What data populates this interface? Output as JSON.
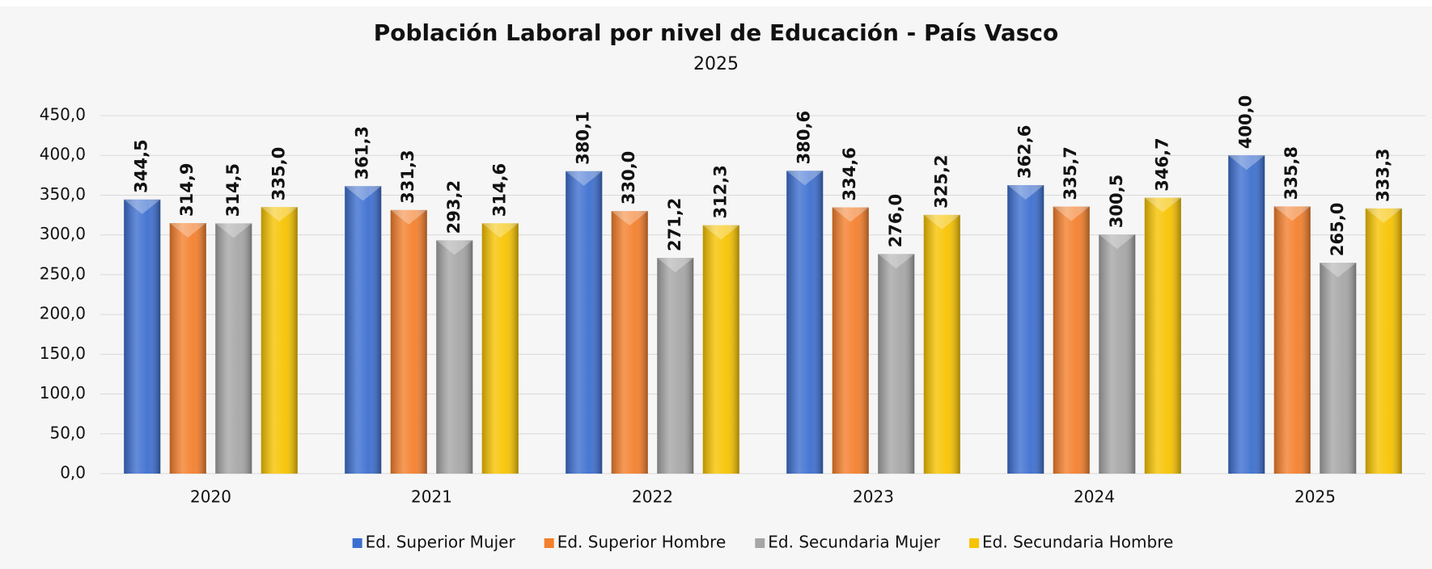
{
  "chart_data": {
    "type": "bar",
    "title": "Población Laboral por nivel de Educación - País Vasco",
    "subtitle": "2025",
    "categories": [
      "2020",
      "2021",
      "2022",
      "2023",
      "2024",
      "2025"
    ],
    "series": [
      {
        "name": "Ed. Superior Mujer",
        "color": "#3d6fd0",
        "values": [
          344.5,
          361.3,
          380.1,
          380.6,
          362.6,
          400.0
        ],
        "value_labels": [
          "344,5",
          "361,3",
          "380,1",
          "380,6",
          "362,6",
          "400,0"
        ]
      },
      {
        "name": "Ed. Superior Hombre",
        "color": "#f47f2c",
        "values": [
          314.9,
          331.3,
          330.0,
          334.6,
          335.7,
          335.8
        ],
        "value_labels": [
          "314,9",
          "331,3",
          "330,0",
          "334,6",
          "335,7",
          "335,8"
        ]
      },
      {
        "name": "Ed. Secundaria Mujer",
        "color": "#a6a6a6",
        "values": [
          314.5,
          293.2,
          271.2,
          276.0,
          300.5,
          265.0
        ],
        "value_labels": [
          "314,5",
          "293,2",
          "271,2",
          "276,0",
          "300,5",
          "265,0"
        ]
      },
      {
        "name": "Ed. Secundaria Hombre",
        "color": "#f7c300",
        "values": [
          335.0,
          314.6,
          312.3,
          325.2,
          346.7,
          333.3
        ],
        "value_labels": [
          "335,0",
          "314,6",
          "312,3",
          "325,2",
          "346,7",
          "333,3"
        ]
      }
    ],
    "ylim": [
      0,
      450
    ],
    "yticks": [
      {
        "value": 0,
        "label": "0,0"
      },
      {
        "value": 50,
        "label": "50,0"
      },
      {
        "value": 100,
        "label": "100,0"
      },
      {
        "value": 150,
        "label": "150,0"
      },
      {
        "value": 200,
        "label": "200,0"
      },
      {
        "value": 250,
        "label": "250,0"
      },
      {
        "value": 300,
        "label": "300,0"
      },
      {
        "value": 350,
        "label": "350,0"
      },
      {
        "value": 400,
        "label": "400,0"
      },
      {
        "value": 450,
        "label": "450,0"
      }
    ],
    "grid": true,
    "legend": "bottom"
  }
}
